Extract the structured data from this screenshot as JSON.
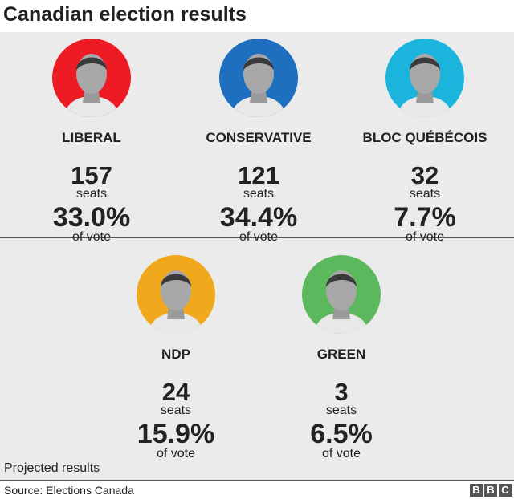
{
  "title": "Canadian election results",
  "chart_data": {
    "type": "table",
    "title": "Canadian election results",
    "columns": [
      "party",
      "seats",
      "vote_share"
    ],
    "parties": [
      {
        "name": "LIBERAL",
        "seats": "157",
        "seats_label": "seats",
        "vote": "33.0%",
        "vote_label": "of vote",
        "color": "#ed1b24"
      },
      {
        "name": "CONSERVATIVE",
        "seats": "121",
        "seats_label": "seats",
        "vote": "34.4%",
        "vote_label": "of vote",
        "color": "#1f6fbf"
      },
      {
        "name": "BLOC QUÉBÉCOIS",
        "seats": "32",
        "seats_label": "seats",
        "vote": "7.7%",
        "vote_label": "of vote",
        "color": "#1bb4dc"
      },
      {
        "name": "NDP",
        "seats": "24",
        "seats_label": "seats",
        "vote": "15.9%",
        "vote_label": "of vote",
        "color": "#f0a81c"
      },
      {
        "name": "GREEN",
        "seats": "3",
        "seats_label": "seats",
        "vote": "6.5%",
        "vote_label": "of vote",
        "color": "#5cb85c"
      }
    ]
  },
  "note": "Projected results",
  "source": "Source: Elections Canada",
  "logo": [
    "B",
    "B",
    "C"
  ]
}
